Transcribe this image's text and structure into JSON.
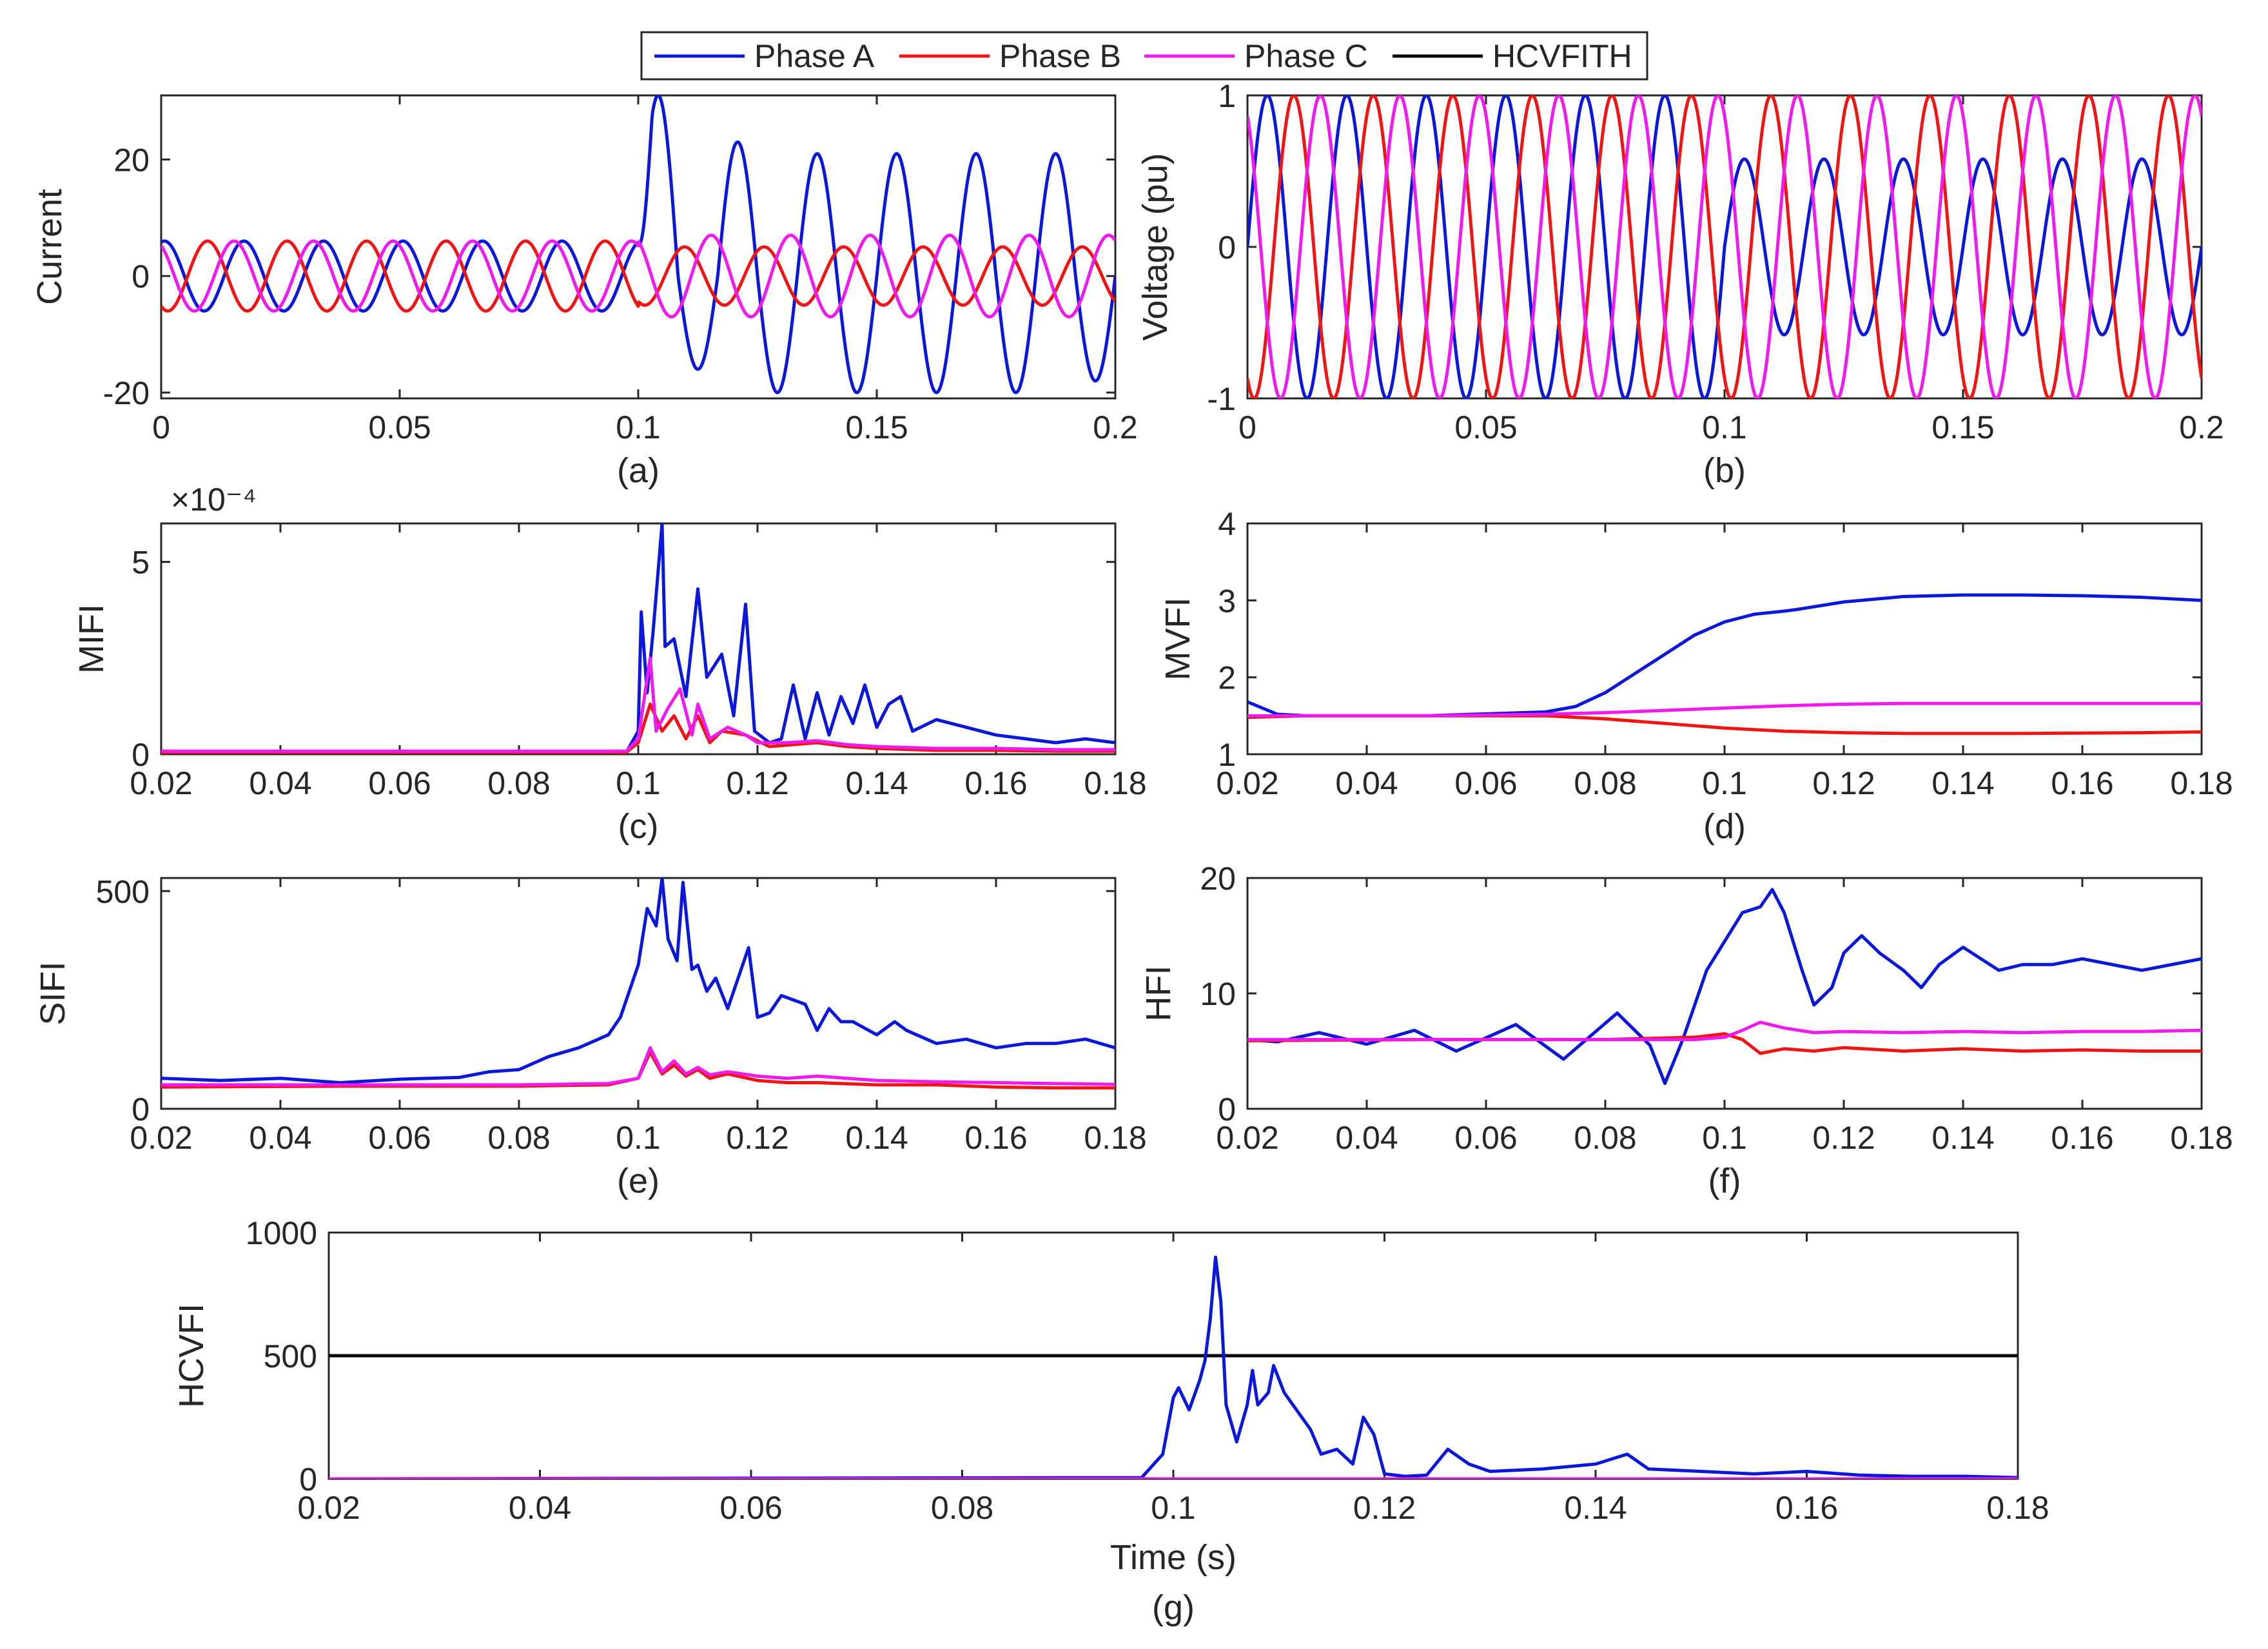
{
  "legend": {
    "entries": [
      {
        "name": "Phase A",
        "color": "#0b17d9"
      },
      {
        "name": "Phase B",
        "color": "#f01515"
      },
      {
        "name": "Phase C",
        "color": "#ee1aee"
      },
      {
        "name": "HCVFITH",
        "color": "#000000"
      }
    ]
  },
  "chart_data": [
    {
      "id": "a",
      "type": "line",
      "panel_label": "(a)",
      "xlabel": "",
      "ylabel": "Current",
      "xlim": [
        0,
        0.2
      ],
      "ylim": [
        -21,
        31
      ],
      "xticks": [
        "0",
        "0.05",
        "0.1",
        "0.15",
        "0.2"
      ],
      "xtick_values": [
        0,
        0.05,
        0.1,
        0.15,
        0.2
      ],
      "yticks": [
        "-20",
        "0",
        "20"
      ],
      "ytick_values": [
        -20,
        0,
        20
      ],
      "series": [
        {
          "name": "Phase A",
          "generator": "currentA",
          "pre_fault_amplitude": 6,
          "post_fault_peaks": [
            31,
            -16,
            23,
            -20,
            21,
            -20,
            21,
            -20,
            21,
            -20,
            21,
            -18
          ],
          "fault_time": 0.1
        },
        {
          "name": "Phase B",
          "generator": "sine",
          "amplitude": 6,
          "frequency_hz": 60,
          "phase_deg": -120,
          "post_fault_amplitude": 5
        },
        {
          "name": "Phase C",
          "generator": "sine",
          "amplitude": 6,
          "frequency_hz": 60,
          "phase_deg": 120,
          "post_fault_amplitude": 7
        }
      ]
    },
    {
      "id": "b",
      "type": "line",
      "panel_label": "(b)",
      "xlabel": "",
      "ylabel": "Voltage (pu)",
      "xlim": [
        0,
        0.2
      ],
      "ylim": [
        -1,
        1
      ],
      "xticks": [
        "0",
        "0.05",
        "0.1",
        "0.15",
        "0.2"
      ],
      "xtick_values": [
        0,
        0.05,
        0.1,
        0.15,
        0.2
      ],
      "yticks": [
        "-1",
        "0",
        "1"
      ],
      "ytick_values": [
        -1,
        0,
        1
      ],
      "series": [
        {
          "name": "Phase A",
          "generator": "sine",
          "amplitude": 1,
          "frequency_hz": 60,
          "phase_deg": 0,
          "post_fault_amplitude": 0.58,
          "fault_time": 0.1
        },
        {
          "name": "Phase B",
          "generator": "sine",
          "amplitude": 1,
          "frequency_hz": 60,
          "phase_deg": -120
        },
        {
          "name": "Phase C",
          "generator": "sine",
          "amplitude": 1,
          "frequency_hz": 60,
          "phase_deg": 120
        }
      ]
    },
    {
      "id": "c",
      "type": "line",
      "panel_label": "(c)",
      "xlabel": "",
      "ylabel": "MIFI",
      "exponent": "×10⁻⁴",
      "xlim": [
        0.02,
        0.18
      ],
      "ylim": [
        0,
        6
      ],
      "xticks": [
        "0.02",
        "0.04",
        "0.06",
        "0.08",
        "0.1",
        "0.12",
        "0.14",
        "0.16",
        "0.18"
      ],
      "xtick_values": [
        0.02,
        0.04,
        0.06,
        0.08,
        0.1,
        0.12,
        0.14,
        0.16,
        0.18
      ],
      "yticks": [
        "0",
        "5"
      ],
      "ytick_values": [
        0,
        5
      ],
      "series": [
        {
          "name": "Phase A",
          "x": [
            0.02,
            0.098,
            0.1,
            0.1005,
            0.1015,
            0.1025,
            0.104,
            0.1045,
            0.106,
            0.108,
            0.11,
            0.1115,
            0.114,
            0.116,
            0.118,
            0.1195,
            0.122,
            0.124,
            0.126,
            0.128,
            0.13,
            0.132,
            0.134,
            0.136,
            0.138,
            0.14,
            0.142,
            0.144,
            0.146,
            0.15,
            0.155,
            0.16,
            0.165,
            0.17,
            0.175,
            0.18
          ],
          "y": [
            0.05,
            0.05,
            0.6,
            3.7,
            1.6,
            3.2,
            6.0,
            2.8,
            3.0,
            1.5,
            4.3,
            2.0,
            2.6,
            1.0,
            3.9,
            0.6,
            0.3,
            0.4,
            1.8,
            0.4,
            1.6,
            0.5,
            1.5,
            0.8,
            1.8,
            0.7,
            1.3,
            1.5,
            0.6,
            0.9,
            0.7,
            0.5,
            0.4,
            0.3,
            0.4,
            0.3
          ]
        },
        {
          "name": "Phase B",
          "x": [
            0.02,
            0.098,
            0.1,
            0.102,
            0.104,
            0.106,
            0.108,
            0.11,
            0.112,
            0.114,
            0.118,
            0.122,
            0.13,
            0.135,
            0.14,
            0.15,
            0.16,
            0.17,
            0.18
          ],
          "y": [
            0.05,
            0.05,
            0.3,
            1.3,
            0.6,
            1.0,
            0.4,
            1.0,
            0.3,
            0.6,
            0.5,
            0.2,
            0.3,
            0.2,
            0.15,
            0.1,
            0.1,
            0.08,
            0.08
          ]
        },
        {
          "name": "Phase C",
          "x": [
            0.02,
            0.098,
            0.1,
            0.102,
            0.103,
            0.105,
            0.107,
            0.109,
            0.11,
            0.112,
            0.115,
            0.118,
            0.12,
            0.125,
            0.13,
            0.135,
            0.14,
            0.15,
            0.16,
            0.17,
            0.18
          ],
          "y": [
            0.08,
            0.08,
            0.4,
            2.5,
            0.6,
            1.2,
            1.7,
            0.5,
            1.3,
            0.4,
            0.7,
            0.5,
            0.3,
            0.3,
            0.35,
            0.25,
            0.2,
            0.15,
            0.15,
            0.12,
            0.12
          ]
        }
      ]
    },
    {
      "id": "d",
      "type": "line",
      "panel_label": "(d)",
      "xlabel": "",
      "ylabel": "MVFI",
      "xlim": [
        0.02,
        0.18
      ],
      "ylim": [
        1,
        4
      ],
      "xticks": [
        "0.02",
        "0.04",
        "0.06",
        "0.08",
        "0.1",
        "0.12",
        "0.14",
        "0.16",
        "0.18"
      ],
      "xtick_values": [
        0.02,
        0.04,
        0.06,
        0.08,
        0.1,
        0.12,
        0.14,
        0.16,
        0.18
      ],
      "yticks": [
        "1",
        "2",
        "3",
        "4"
      ],
      "ytick_values": [
        1,
        2,
        3,
        4
      ],
      "series": [
        {
          "name": "Phase A",
          "x": [
            0.02,
            0.025,
            0.03,
            0.05,
            0.07,
            0.075,
            0.08,
            0.085,
            0.09,
            0.095,
            0.1,
            0.105,
            0.11,
            0.112,
            0.12,
            0.13,
            0.14,
            0.15,
            0.16,
            0.17,
            0.18
          ],
          "y": [
            1.68,
            1.52,
            1.5,
            1.5,
            1.55,
            1.62,
            1.8,
            2.05,
            2.3,
            2.55,
            2.72,
            2.82,
            2.86,
            2.88,
            2.98,
            3.05,
            3.07,
            3.07,
            3.06,
            3.04,
            3.0
          ]
        },
        {
          "name": "Phase B",
          "x": [
            0.02,
            0.03,
            0.05,
            0.07,
            0.08,
            0.09,
            0.1,
            0.11,
            0.12,
            0.13,
            0.15,
            0.17,
            0.18
          ],
          "y": [
            1.48,
            1.5,
            1.5,
            1.5,
            1.46,
            1.4,
            1.34,
            1.3,
            1.28,
            1.27,
            1.27,
            1.28,
            1.29
          ]
        },
        {
          "name": "Phase C",
          "x": [
            0.02,
            0.03,
            0.05,
            0.07,
            0.08,
            0.09,
            0.1,
            0.11,
            0.12,
            0.13,
            0.15,
            0.17,
            0.18
          ],
          "y": [
            1.5,
            1.5,
            1.5,
            1.52,
            1.54,
            1.57,
            1.6,
            1.63,
            1.65,
            1.66,
            1.66,
            1.66,
            1.66
          ]
        }
      ]
    },
    {
      "id": "e",
      "type": "line",
      "panel_label": "(e)",
      "xlabel": "",
      "ylabel": "SIFI",
      "xlim": [
        0.02,
        0.18
      ],
      "ylim": [
        0,
        530
      ],
      "xticks": [
        "0.02",
        "0.04",
        "0.06",
        "0.08",
        "0.1",
        "0.12",
        "0.14",
        "0.16",
        "0.18"
      ],
      "xtick_values": [
        0.02,
        0.04,
        0.06,
        0.08,
        0.1,
        0.12,
        0.14,
        0.16,
        0.18
      ],
      "yticks": [
        "0",
        "500"
      ],
      "ytick_values": [
        0,
        500
      ],
      "series": [
        {
          "name": "Phase A",
          "x": [
            0.02,
            0.03,
            0.04,
            0.05,
            0.06,
            0.07,
            0.075,
            0.08,
            0.085,
            0.09,
            0.095,
            0.097,
            0.1,
            0.1015,
            0.103,
            0.104,
            0.105,
            0.1065,
            0.1075,
            0.109,
            0.11,
            0.1115,
            0.113,
            0.115,
            0.117,
            0.1185,
            0.12,
            0.122,
            0.124,
            0.126,
            0.128,
            0.13,
            0.132,
            0.134,
            0.136,
            0.14,
            0.143,
            0.145,
            0.15,
            0.155,
            0.16,
            0.165,
            0.17,
            0.175,
            0.18
          ],
          "y": [
            70,
            65,
            70,
            60,
            68,
            72,
            85,
            90,
            120,
            140,
            170,
            210,
            330,
            460,
            420,
            530,
            390,
            340,
            520,
            320,
            330,
            270,
            300,
            230,
            310,
            370,
            210,
            220,
            260,
            250,
            240,
            180,
            230,
            200,
            200,
            170,
            200,
            180,
            150,
            160,
            140,
            150,
            150,
            160,
            140
          ]
        },
        {
          "name": "Phase B",
          "x": [
            0.02,
            0.05,
            0.08,
            0.095,
            0.1,
            0.102,
            0.104,
            0.106,
            0.108,
            0.11,
            0.112,
            0.115,
            0.12,
            0.125,
            0.13,
            0.14,
            0.15,
            0.16,
            0.17,
            0.18
          ],
          "y": [
            50,
            52,
            52,
            55,
            70,
            130,
            80,
            100,
            75,
            90,
            70,
            80,
            65,
            60,
            60,
            55,
            55,
            50,
            48,
            48
          ]
        },
        {
          "name": "Phase C",
          "x": [
            0.02,
            0.05,
            0.08,
            0.095,
            0.1,
            0.102,
            0.104,
            0.106,
            0.108,
            0.11,
            0.112,
            0.115,
            0.12,
            0.125,
            0.13,
            0.14,
            0.15,
            0.16,
            0.17,
            0.18
          ],
          "y": [
            55,
            55,
            55,
            58,
            70,
            140,
            85,
            110,
            80,
            95,
            78,
            85,
            75,
            70,
            75,
            65,
            62,
            60,
            58,
            56
          ]
        }
      ]
    },
    {
      "id": "f",
      "type": "line",
      "panel_label": "(f)",
      "xlabel": "",
      "ylabel": "HFI",
      "xlim": [
        0.02,
        0.18
      ],
      "ylim": [
        0,
        20
      ],
      "xticks": [
        "0.02",
        "0.04",
        "0.06",
        "0.08",
        "0.1",
        "0.12",
        "0.14",
        "0.16",
        "0.18"
      ],
      "xtick_values": [
        0.02,
        0.04,
        0.06,
        0.08,
        0.1,
        0.12,
        0.14,
        0.16,
        0.18
      ],
      "yticks": [
        "0",
        "10",
        "20"
      ],
      "ytick_values": [
        0,
        10,
        20
      ],
      "series": [
        {
          "name": "Phase A",
          "x": [
            0.02,
            0.025,
            0.032,
            0.04,
            0.048,
            0.055,
            0.065,
            0.073,
            0.082,
            0.0875,
            0.09,
            0.093,
            0.097,
            0.1,
            0.103,
            0.106,
            0.108,
            0.11,
            0.113,
            0.115,
            0.118,
            0.12,
            0.123,
            0.126,
            0.13,
            0.133,
            0.136,
            0.14,
            0.143,
            0.146,
            0.15,
            0.155,
            0.16,
            0.165,
            0.17,
            0.175,
            0.18
          ],
          "y": [
            6.0,
            5.8,
            6.6,
            5.6,
            6.8,
            5.0,
            7.3,
            4.3,
            8.3,
            5.5,
            2.2,
            6.0,
            12.0,
            14.5,
            17.0,
            17.5,
            19.0,
            17.0,
            12.0,
            9.0,
            10.5,
            13.5,
            15.0,
            13.5,
            12.0,
            10.5,
            12.5,
            14.0,
            13.0,
            12.0,
            12.5,
            12.5,
            13.0,
            12.5,
            12.0,
            12.5,
            13.0
          ]
        },
        {
          "name": "Phase B",
          "x": [
            0.02,
            0.05,
            0.08,
            0.095,
            0.1,
            0.103,
            0.106,
            0.11,
            0.115,
            0.12,
            0.13,
            0.14,
            0.15,
            0.16,
            0.17,
            0.18
          ],
          "y": [
            5.9,
            6.0,
            6.0,
            6.2,
            6.5,
            6.0,
            4.8,
            5.2,
            5.0,
            5.3,
            5.0,
            5.2,
            5.0,
            5.1,
            5.0,
            5.0
          ]
        },
        {
          "name": "Phase C",
          "x": [
            0.02,
            0.05,
            0.08,
            0.095,
            0.1,
            0.103,
            0.106,
            0.11,
            0.115,
            0.12,
            0.13,
            0.14,
            0.15,
            0.16,
            0.17,
            0.18
          ],
          "y": [
            6.0,
            6.0,
            6.0,
            6.0,
            6.2,
            6.8,
            7.5,
            7.0,
            6.6,
            6.7,
            6.6,
            6.7,
            6.6,
            6.7,
            6.7,
            6.8
          ]
        }
      ]
    },
    {
      "id": "g",
      "type": "line",
      "panel_label": "(g)",
      "xlabel": "Time (s)",
      "ylabel": "HCVFI",
      "xlim": [
        0.02,
        0.18
      ],
      "ylim": [
        0,
        1000
      ],
      "xticks": [
        "0.02",
        "0.04",
        "0.06",
        "0.08",
        "0.1",
        "0.12",
        "0.14",
        "0.16",
        "0.18"
      ],
      "xtick_values": [
        0.02,
        0.04,
        0.06,
        0.08,
        0.1,
        0.12,
        0.14,
        0.16,
        0.18
      ],
      "yticks": [
        "0",
        "500",
        "1000"
      ],
      "ytick_values": [
        0,
        500,
        1000
      ],
      "series": [
        {
          "name": "Phase A",
          "x": [
            0.02,
            0.097,
            0.099,
            0.1,
            0.1005,
            0.1015,
            0.102,
            0.1025,
            0.103,
            0.1035,
            0.104,
            0.1045,
            0.105,
            0.106,
            0.107,
            0.1075,
            0.108,
            0.109,
            0.1095,
            0.1105,
            0.112,
            0.113,
            0.114,
            0.1155,
            0.117,
            0.118,
            0.119,
            0.12,
            0.122,
            0.124,
            0.126,
            0.128,
            0.13,
            0.135,
            0.14,
            0.143,
            0.145,
            0.15,
            0.155,
            0.16,
            0.165,
            0.17,
            0.175,
            0.18
          ],
          "y": [
            0,
            5,
            100,
            330,
            370,
            280,
            340,
            400,
            480,
            650,
            900,
            720,
            300,
            150,
            300,
            440,
            300,
            350,
            460,
            350,
            260,
            200,
            100,
            120,
            60,
            250,
            180,
            20,
            10,
            15,
            120,
            60,
            30,
            40,
            60,
            100,
            40,
            30,
            20,
            30,
            15,
            10,
            10,
            5
          ]
        },
        {
          "name": "Phase B",
          "x": [
            0.02,
            0.18
          ],
          "y": [
            0,
            0
          ]
        },
        {
          "name": "Phase C",
          "x": [
            0.02,
            0.18
          ],
          "y": [
            0,
            0
          ]
        },
        {
          "name": "HCVFITH",
          "x": [
            0.02,
            0.18
          ],
          "y": [
            500,
            500
          ]
        }
      ]
    }
  ]
}
